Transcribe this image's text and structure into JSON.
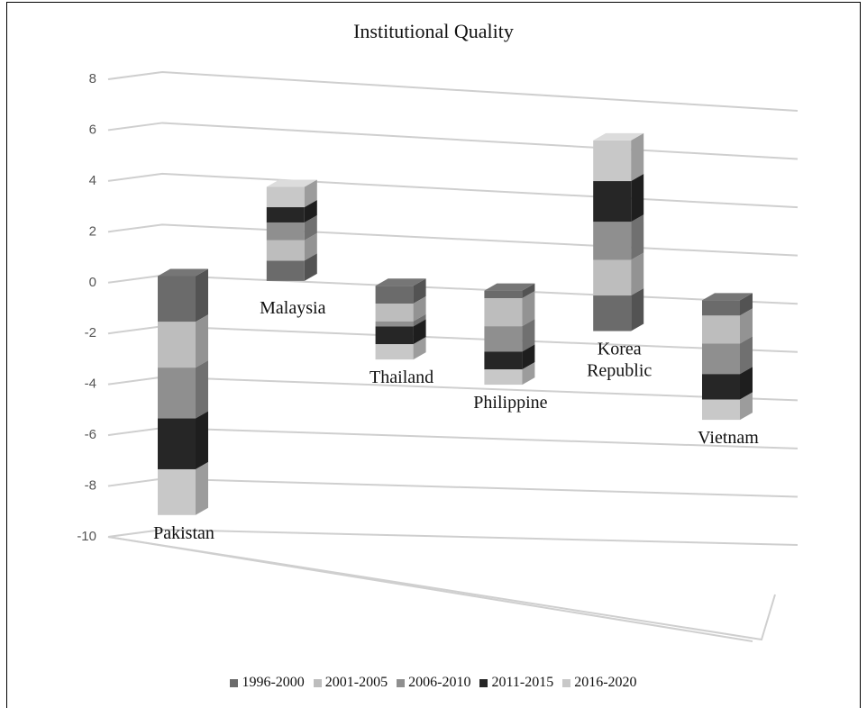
{
  "chart_data": {
    "type": "bar",
    "stacked": true,
    "three_d": true,
    "title": "Institutional Quality",
    "categories": [
      "Pakistan",
      "Malaysia",
      "Thailand",
      "Philippine",
      "Korea Republic",
      "Vietnam"
    ],
    "category_display": [
      [
        "Pakistan"
      ],
      [
        "Malaysia"
      ],
      [
        "Thailand"
      ],
      [
        "Philippine"
      ],
      [
        "Korea",
        "Republic"
      ],
      [
        "Vietnam"
      ]
    ],
    "series": [
      {
        "name": "1996-2000",
        "color": "#6b6b6b",
        "values": [
          -1.8,
          0.8,
          -0.7,
          -0.3,
          -1.4,
          -0.6
        ]
      },
      {
        "name": "2001-2005",
        "color": "#bdbdbd",
        "values": [
          -1.8,
          0.8,
          -0.7,
          -1.1,
          1.4,
          -1.1
        ]
      },
      {
        "name": "2006-2010",
        "color": "#8f8f8f",
        "values": [
          -2.0,
          0.7,
          -0.2,
          -1.0,
          1.5,
          -1.2
        ]
      },
      {
        "name": "2011-2015",
        "color": "#262626",
        "values": [
          -2.0,
          0.6,
          -0.7,
          -0.7,
          1.6,
          -1.0
        ]
      },
      {
        "name": "2016-2020",
        "color": "#c8c8c8",
        "values": [
          -1.8,
          0.8,
          -0.6,
          -0.6,
          1.6,
          -0.8
        ]
      }
    ],
    "ylim": [
      -10,
      8
    ],
    "yticks": [
      8,
      6,
      4,
      2,
      0,
      -2,
      -4,
      -6,
      -8,
      -10
    ],
    "grid": true,
    "legend": "bottom"
  }
}
